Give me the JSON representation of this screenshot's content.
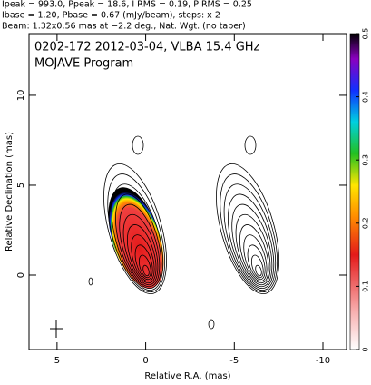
{
  "chart_data": {
    "type": "contour",
    "header": [
      "Ipeak = 993.0, Ppeak = 18.6, I RMS = 0.19, P RMS = 0.25",
      "Ibase = 1.20, Pbase = 0.67 (mJy/beam), steps: x 2",
      "Beam: 1.32x0.56 mas at −2.2 deg., Nat. Wgt. (no taper)"
    ],
    "title": "0202-172 2012-03-04, VLBA 15.4 GHz",
    "subtitle": "MOJAVE Program",
    "xlabel": "Relative R.A. (mas)",
    "ylabel": "Relative Declination (mas)",
    "xlim": [
      6.58,
      -11.33
    ],
    "xticks": [
      5,
      0,
      -5,
      -10
    ],
    "ylim": [
      -4.14,
      13.43
    ],
    "yticks": [
      0,
      5,
      10
    ],
    "colorbar": {
      "lim": [
        0,
        0.5
      ],
      "ticks": [
        0,
        0.1,
        0.2,
        0.3,
        0.4,
        0.5
      ]
    }
  }
}
